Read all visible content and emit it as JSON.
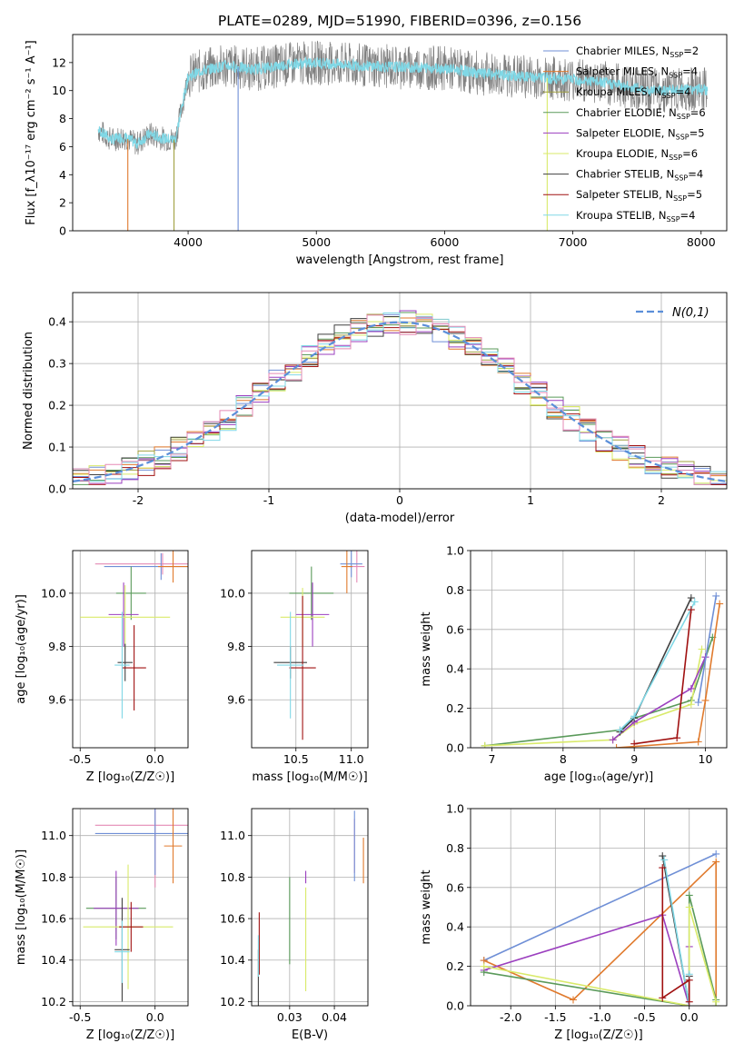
{
  "figure_title": "PLATE=0289, MJD=51990, FIBERID=0396, z=0.156",
  "colors": {
    "ChabrierMILES": "#6f8fd6",
    "SalpeterMILES": "#e07a2d",
    "KroupaMILES": "#a0a040",
    "ChabrierELODIE": "#5a9a5a",
    "SalpeterELODIE": "#9b3fbf",
    "KroupaELODIE": "#d9ea6a",
    "ChabrierSTELIB": "#404040",
    "SalpeterSTELIB": "#a01010",
    "KroupaSTELIB": "#80d8e6",
    "pinkSeries": "#e58ab5",
    "data": "#808080",
    "gaussian": "#5b8fd9",
    "grid": "#b0b0b0"
  },
  "chart_data": [
    {
      "id": "spectrum",
      "type": "line",
      "title": "PLATE=0289, MJD=51990, FIBERID=0396, z=0.156",
      "xlabel": "wavelength [Angstrom, rest frame]",
      "ylabel": "Flux [f_λ10⁻¹⁷ erg cm⁻² s⁻¹ A⁻¹]",
      "xlim": [
        3100,
        8200
      ],
      "ylim": [
        0,
        14
      ],
      "xticks": [
        4000,
        5000,
        6000,
        7000,
        8000
      ],
      "yticks": [
        0,
        2,
        4,
        6,
        8,
        10,
        12
      ],
      "grid": false,
      "legend_position": "right",
      "legend": [
        {
          "label": "Chabrier MILES, N_SSP=2",
          "main": "Chabrier MILES, N",
          "sub": "SSP",
          "tail": "=2",
          "color_key": "ChabrierMILES"
        },
        {
          "label": "Salpeter MILES, N_SSP=4",
          "main": "Salpeter MILES, N",
          "sub": "SSP",
          "tail": "=4",
          "color_key": "SalpeterMILES"
        },
        {
          "label": "Kroupa MILES, N_SSP=4",
          "main": "Kroupa MILES, N",
          "sub": "SSP",
          "tail": "=4",
          "color_key": "KroupaMILES"
        },
        {
          "label": "Chabrier ELODIE, N_SSP=6",
          "main": "Chabrier ELODIE, N",
          "sub": "SSP",
          "tail": "=6",
          "color_key": "ChabrierELODIE"
        },
        {
          "label": "Salpeter ELODIE, N_SSP=5",
          "main": "Salpeter ELODIE, N",
          "sub": "SSP",
          "tail": "=5",
          "color_key": "SalpeterELODIE"
        },
        {
          "label": "Kroupa ELODIE, N_SSP=6",
          "main": "Kroupa ELODIE, N",
          "sub": "SSP",
          "tail": "=6",
          "color_key": "KroupaELODIE"
        },
        {
          "label": "Chabrier STELIB, N_SSP=4",
          "main": "Chabrier STELIB, N",
          "sub": "SSP",
          "tail": "=4",
          "color_key": "ChabrierSTELIB"
        },
        {
          "label": "Salpeter STELIB, N_SSP=5",
          "main": "Salpeter STELIB, N",
          "sub": "SSP",
          "tail": "=5",
          "color_key": "SalpeterSTELIB"
        },
        {
          "label": "Kroupa STELIB, N_SSP=4",
          "main": "Kroupa STELIB, N",
          "sub": "SSP",
          "tail": "=4",
          "color_key": "KroupaSTELIB"
        }
      ],
      "continuum": {
        "x": [
          3300,
          3400,
          3500,
          3600,
          3700,
          3800,
          3900,
          4000,
          4100,
          4300,
          4500,
          4800,
          5000,
          5300,
          5600,
          6000,
          6300,
          6600,
          7000,
          7300,
          7600,
          8000,
          8050
        ],
        "y": [
          7.2,
          6.5,
          6.7,
          6.2,
          6.9,
          6.6,
          6.5,
          11.0,
          11.4,
          11.8,
          11.5,
          11.9,
          12.0,
          11.8,
          11.7,
          11.6,
          11.2,
          11.0,
          10.8,
          10.5,
          10.0,
          10.1,
          10.0
        ]
      },
      "spikes": [
        {
          "x": 3530,
          "ymin": 0
        },
        {
          "x": 3890,
          "ymin": 0
        },
        {
          "x": 4390,
          "ymin": 0
        },
        {
          "x": 6800,
          "ymin": 0
        }
      ]
    },
    {
      "id": "residuals",
      "type": "step",
      "xlabel": "(data-model)/error",
      "ylabel": "Normed distribution",
      "xlim": [
        -2.5,
        2.5
      ],
      "ylim": [
        0,
        0.47
      ],
      "xticks": [
        -2,
        -1,
        0,
        1,
        2
      ],
      "yticks": [
        0.0,
        0.1,
        0.2,
        0.3,
        0.4
      ],
      "grid": true,
      "legend_position": "top-right",
      "gaussian_label": "N(0,1)",
      "bins": 40
    },
    {
      "id": "age_vs_Z",
      "type": "errorbar",
      "xlabel": "Z [log₁₀(Z/Z☉)]",
      "ylabel": "age  [log₁₀(age/yr)]",
      "xlim": [
        -0.55,
        0.22
      ],
      "ylim": [
        9.42,
        10.16
      ],
      "xticks": [
        -0.5,
        0.0
      ],
      "yticks": [
        9.6,
        9.8,
        10.0
      ],
      "grid": true,
      "points": [
        {
          "c": "pinkSeries",
          "x": 0.05,
          "xe": 0.45,
          "y": 10.11,
          "ye": 0.04
        },
        {
          "c": "ChabrierMILES",
          "x": 0.04,
          "xe": 0.38,
          "y": 10.1,
          "ye": 0.05
        },
        {
          "c": "SalpeterMILES",
          "x": 0.12,
          "xe": 0.1,
          "y": 10.1,
          "ye": 0.06
        },
        {
          "c": "ChabrierELODIE",
          "x": -0.16,
          "xe": 0.1,
          "y": 10.0,
          "ye": 0.1
        },
        {
          "c": "SalpeterELODIE",
          "x": -0.21,
          "xe": 0.1,
          "y": 9.92,
          "ye": 0.12
        },
        {
          "c": "KroupaELODIE",
          "x": -0.2,
          "xe": 0.3,
          "y": 9.91,
          "ye": 0.12
        },
        {
          "c": "ChabrierSTELIB",
          "x": -0.2,
          "xe": 0.05,
          "y": 9.74,
          "ye": 0.07
        },
        {
          "c": "SalpeterSTELIB",
          "x": -0.14,
          "xe": 0.08,
          "y": 9.72,
          "ye": 0.16
        },
        {
          "c": "KroupaSTELIB",
          "x": -0.22,
          "xe": 0.05,
          "y": 9.73,
          "ye": 0.2
        }
      ]
    },
    {
      "id": "age_vs_mass",
      "type": "errorbar",
      "xlabel": "mass [log₁₀(M/M☉)]",
      "ylabel": "",
      "xlim": [
        10.1,
        11.15
      ],
      "ylim": [
        9.42,
        10.16
      ],
      "xticks": [
        10.5,
        11.0
      ],
      "yticks": [
        9.6,
        9.8,
        10.0
      ],
      "grid": true,
      "points": [
        {
          "c": "pinkSeries",
          "x": 11.05,
          "xe": 0.07,
          "y": 10.1,
          "ye": 0.06
        },
        {
          "c": "ChabrierMILES",
          "x": 11.0,
          "xe": 0.1,
          "y": 10.11,
          "ye": 0.05
        },
        {
          "c": "SalpeterMILES",
          "x": 10.96,
          "xe": 0.05,
          "y": 10.1,
          "ye": 0.1
        },
        {
          "c": "ChabrierELODIE",
          "x": 10.64,
          "xe": 0.2,
          "y": 10.0,
          "ye": 0.1
        },
        {
          "c": "SalpeterELODIE",
          "x": 10.65,
          "xe": 0.15,
          "y": 9.92,
          "ye": 0.12
        },
        {
          "c": "KroupaELODIE",
          "x": 10.56,
          "xe": 0.2,
          "y": 9.91,
          "ye": 0.11
        },
        {
          "c": "ChabrierSTELIB",
          "x": 10.45,
          "xe": 0.15,
          "y": 9.74,
          "ye": 0.06
        },
        {
          "c": "SalpeterSTELIB",
          "x": 10.56,
          "xe": 0.12,
          "y": 9.72,
          "ye": 0.27
        },
        {
          "c": "KroupaSTELIB",
          "x": 10.45,
          "xe": 0.12,
          "y": 9.73,
          "ye": 0.2
        }
      ]
    },
    {
      "id": "mass_weight_vs_age",
      "type": "line",
      "xlabel": "age  [log₁₀(age/yr)]",
      "ylabel": "mass weight",
      "xlim": [
        6.7,
        10.3
      ],
      "ylim": [
        0,
        1.0
      ],
      "xticks": [
        7,
        8,
        9,
        10
      ],
      "yticks": [
        0.0,
        0.2,
        0.4,
        0.6,
        0.8,
        1.0
      ],
      "grid": true,
      "series": [
        {
          "c": "ChabrierELODIE",
          "x": [
            6.9,
            8.8,
            9.0,
            9.8,
            10.1
          ],
          "y": [
            0.01,
            0.09,
            0.15,
            0.24,
            0.56
          ]
        },
        {
          "c": "KroupaELODIE",
          "x": [
            6.9,
            8.7,
            9.0,
            9.8,
            9.95
          ],
          "y": [
            0.01,
            0.04,
            0.12,
            0.22,
            0.5
          ]
        },
        {
          "c": "SalpeterELODIE",
          "x": [
            8.7,
            9.0,
            9.8,
            10.0
          ],
          "y": [
            0.04,
            0.13,
            0.3,
            0.46
          ]
        },
        {
          "c": "ChabrierSTELIB",
          "x": [
            8.8,
            9.0,
            9.8
          ],
          "y": [
            0.08,
            0.15,
            0.76
          ]
        },
        {
          "c": "KroupaSTELIB",
          "x": [
            8.8,
            9.0,
            9.85
          ],
          "y": [
            0.09,
            0.16,
            0.74
          ]
        },
        {
          "c": "SalpeterSTELIB",
          "x": [
            9.0,
            9.6,
            9.8
          ],
          "y": [
            0.02,
            0.05,
            0.7
          ]
        },
        {
          "c": "ChabrierMILES",
          "x": [
            9.9,
            10.15
          ],
          "y": [
            0.23,
            0.77
          ]
        },
        {
          "c": "SalpeterMILES",
          "x": [
            8.75,
            9.9,
            10.0,
            10.2
          ],
          "y": [
            0.0,
            0.03,
            0.24,
            0.73
          ]
        }
      ]
    },
    {
      "id": "mass_vs_Z",
      "type": "errorbar",
      "xlabel": "Z [log₁₀(Z/Z☉)]",
      "ylabel": "mass [log₁₀(M/M☉)]",
      "xlim": [
        -0.55,
        0.22
      ],
      "ylim": [
        10.18,
        11.13
      ],
      "xticks": [
        -0.5,
        0.0
      ],
      "yticks": [
        10.2,
        10.4,
        10.6,
        10.8,
        11.0
      ],
      "grid": true,
      "points": [
        {
          "c": "pinkSeries",
          "x": 0.0,
          "xe": 0.4,
          "y": 11.05,
          "ye": 0.3
        },
        {
          "c": "ChabrierMILES",
          "x": 0.0,
          "xe": 0.4,
          "y": 11.01,
          "ye": 0.2
        },
        {
          "c": "SalpeterMILES",
          "x": 0.12,
          "xe": 0.06,
          "y": 10.95,
          "ye": 0.18
        },
        {
          "c": "ChabrierELODIE",
          "x": -0.26,
          "xe": 0.2,
          "y": 10.65,
          "ye": 0.15
        },
        {
          "c": "SalpeterELODIE",
          "x": -0.26,
          "xe": 0.15,
          "y": 10.65,
          "ye": 0.18
        },
        {
          "c": "KroupaELODIE",
          "x": -0.18,
          "xe": 0.3,
          "y": 10.56,
          "ye": 0.3
        },
        {
          "c": "ChabrierSTELIB",
          "x": -0.22,
          "xe": 0.05,
          "y": 10.45,
          "ye": 0.25
        },
        {
          "c": "SalpeterSTELIB",
          "x": -0.16,
          "xe": 0.08,
          "y": 10.56,
          "ye": 0.12
        },
        {
          "c": "KroupaSTELIB",
          "x": -0.22,
          "xe": 0.05,
          "y": 10.44,
          "ye": 0.15
        }
      ]
    },
    {
      "id": "mass_vs_EBV",
      "type": "errorbar",
      "xlabel": "E(B-V)",
      "ylabel": "",
      "xlim": [
        0.0215,
        0.0475
      ],
      "ylim": [
        10.18,
        11.13
      ],
      "xticks": [
        0.03,
        0.04
      ],
      "yticks": [
        10.2,
        10.4,
        10.6,
        10.8,
        11.0
      ],
      "grid": true,
      "points": [
        {
          "c": "pinkSeries",
          "x": 0.0445,
          "xe": 0.0,
          "y": 10.95,
          "ye": 0.13
        },
        {
          "c": "ChabrierMILES",
          "x": 0.0445,
          "xe": 0.0,
          "y": 10.95,
          "ye": 0.17
        },
        {
          "c": "SalpeterMILES",
          "x": 0.0465,
          "xe": 0.0,
          "y": 10.88,
          "ye": 0.11
        },
        {
          "c": "ChabrierELODIE",
          "x": 0.03,
          "xe": 0.0,
          "y": 10.59,
          "ye": 0.21
        },
        {
          "c": "SalpeterELODIE",
          "x": 0.0336,
          "xe": 0.0,
          "y": 10.8,
          "ye": 0.03
        },
        {
          "c": "KroupaELODIE",
          "x": 0.0336,
          "xe": 0.0,
          "y": 10.5,
          "ye": 0.25
        },
        {
          "c": "ChabrierSTELIB",
          "x": 0.023,
          "xe": 0.0,
          "y": 10.3,
          "ye": 0.15
        },
        {
          "c": "SalpeterSTELIB",
          "x": 0.0232,
          "xe": 0.0,
          "y": 10.48,
          "ye": 0.15
        },
        {
          "c": "KroupaSTELIB",
          "x": 0.023,
          "xe": 0.0,
          "y": 10.42,
          "ye": 0.1
        }
      ]
    },
    {
      "id": "mass_weight_vs_Z",
      "type": "line",
      "xlabel": "Z [log₁₀(Z/Z☉)]",
      "ylabel": "mass weight",
      "xlim": [
        -2.45,
        0.42
      ],
      "ylim": [
        0,
        1.0
      ],
      "xticks": [
        -2.0,
        -1.5,
        -1.0,
        -0.5,
        0.0
      ],
      "yticks": [
        0.0,
        0.2,
        0.4,
        0.6,
        0.8,
        1.0
      ],
      "grid": true,
      "series": [
        {
          "c": "ChabrierMILES",
          "x": [
            -2.3,
            0.3
          ],
          "y": [
            0.23,
            0.77
          ]
        },
        {
          "c": "SalpeterMILES",
          "x": [
            -2.3,
            -1.3,
            0.3,
            0.3
          ],
          "y": [
            0.23,
            0.03,
            0.73,
            0.0
          ]
        },
        {
          "c": "SalpeterELODIE",
          "x": [
            -2.3,
            -0.3,
            0.0,
            0.0
          ],
          "y": [
            0.18,
            0.46,
            0.0,
            0.3
          ]
        },
        {
          "c": "ChabrierELODIE",
          "x": [
            -2.3,
            0.0,
            0.0,
            0.3,
            0.3
          ],
          "y": [
            0.17,
            0.0,
            0.56,
            0.03,
            0.0
          ]
        },
        {
          "c": "KroupaELODIE",
          "x": [
            -2.3,
            0.0,
            0.0,
            0.3
          ],
          "y": [
            0.2,
            0.0,
            0.5,
            0.02
          ]
        },
        {
          "c": "ChabrierSTELIB",
          "x": [
            -0.3,
            0.0,
            0.0
          ],
          "y": [
            0.76,
            0.0,
            0.15
          ]
        },
        {
          "c": "KroupaSTELIB",
          "x": [
            -0.28,
            0.0,
            0.0
          ],
          "y": [
            0.74,
            0.0,
            0.16
          ]
        },
        {
          "c": "SalpeterSTELIB",
          "x": [
            -0.3,
            -0.3,
            0.0,
            0.0
          ],
          "y": [
            0.7,
            0.04,
            0.13,
            0.02
          ]
        }
      ]
    }
  ]
}
